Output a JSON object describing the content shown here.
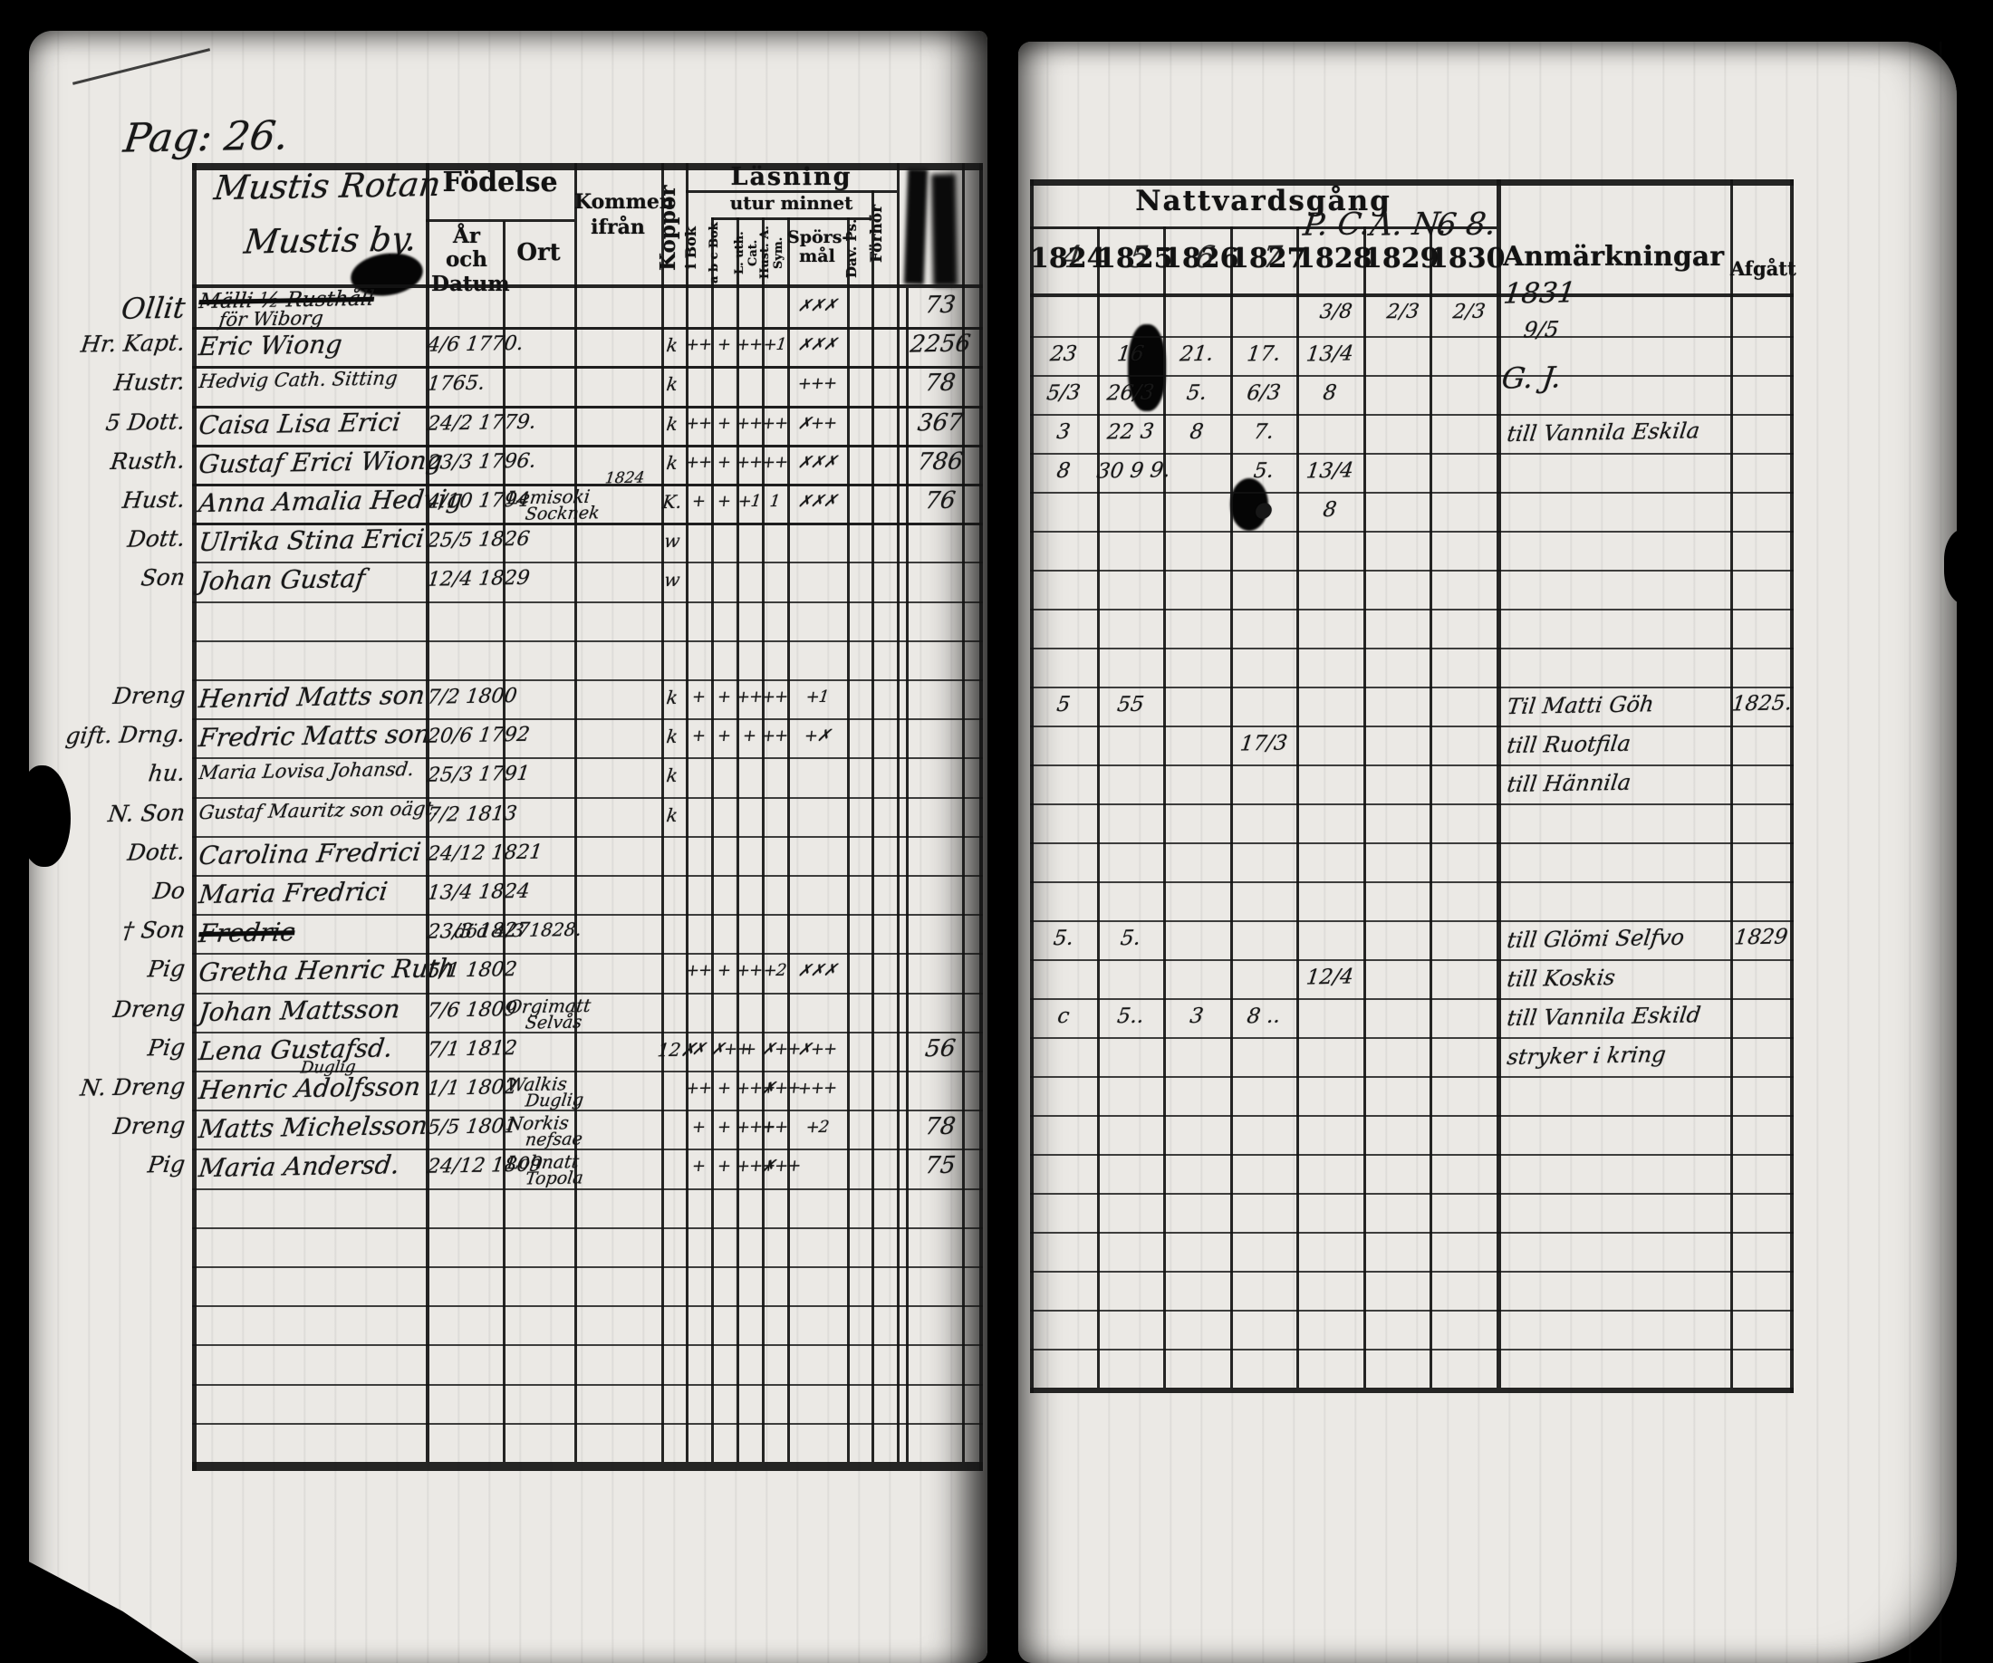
{
  "palette": {
    "background": "#000000",
    "paper": "#ebe9e5",
    "ink": "#1c1c1c"
  },
  "left_page": {
    "reg_label": "Pag: 26.",
    "title_line1": "Mustis Rotan",
    "title_line2": "Mustis by.",
    "headers": {
      "fodelse": "Födelse",
      "ar_och_datum": "År och Datum",
      "ort": "Ort",
      "kommen_ifran": "Kommen ifrån",
      "koppor": "Koppor",
      "lasning": "Läsning",
      "utur_minnet": "utur minnet",
      "i_bok": "i Bok",
      "abc_bok": "a b c Bok",
      "cat_uth": "L. uth. Cat.",
      "hust_sym": "Hust. A. Sym.",
      "sporsmal": "Spörs- mål",
      "dav_ps": "Dav. Ps.",
      "forhor": "Förhör"
    },
    "rows": [
      {
        "margin": "Ollit",
        "name": "Mälli ½ Rusthåll",
        "name2": "för Wiborg",
        "struck": true,
        "m": [
          "",
          "",
          "",
          "",
          "✗✗✗",
          ""
        ],
        "score": "73"
      },
      {
        "margin": "Hr. Kapt.",
        "name": "Eric Wiong",
        "date": "4/6 1770.",
        "koppor": "k",
        "m": [
          "++",
          "+",
          "++",
          "+1",
          "✗✗✗",
          ""
        ],
        "score": "2256"
      },
      {
        "margin": "Hustr.",
        "name": "Hedvig Cath. Sitting",
        "date": "1765.",
        "koppor": "k",
        "m": [
          "",
          "",
          "",
          "",
          "+++",
          ""
        ],
        "score": "78"
      },
      {
        "margin": "5 Dott.",
        "name": "Caisa Lisa Erici",
        "date": "24/2 1779.",
        "koppor": "k",
        "m": [
          "++",
          "+",
          "++",
          "++",
          "✗++",
          ""
        ],
        "score": "367"
      },
      {
        "margin": "Rusth.",
        "name": "Gustaf Erici Wiong",
        "date": "23/3 1796.",
        "koppor": "k",
        "m": [
          "++",
          "+",
          "++",
          "++",
          "✗✗✗",
          ""
        ],
        "score": "786"
      },
      {
        "margin": "Hust.",
        "name": "Anna Amalia Hedvig",
        "date": "4/10 1794",
        "kommen": "Lemisoki",
        "kommen2": "Socknek",
        "kommen_note": "1824",
        "koppor": "K.",
        "m": [
          "+",
          "+",
          "+1",
          "1",
          "✗✗✗",
          ""
        ],
        "score": "76"
      },
      {
        "margin": "Dott.",
        "name": "Ulrika Stina Erici",
        "date": "25/5 1826",
        "koppor": "w",
        "m": [
          "",
          "",
          "",
          "",
          "",
          ""
        ]
      },
      {
        "margin": "Son",
        "name": "Johan Gustaf",
        "date": "12/4 1829",
        "koppor": "w",
        "m": [
          "",
          "",
          "",
          "",
          "",
          ""
        ]
      },
      {},
      {},
      {
        "margin": "Dreng",
        "name": "Henrid Matts son",
        "date": "7/2 1800",
        "koppor": "k",
        "m": [
          "+",
          "+",
          "++",
          "++",
          "+1",
          ""
        ]
      },
      {
        "margin": "gift. Drng.",
        "name": "Fredric Matts son",
        "date": "20/6 1792",
        "koppor": "k",
        "m": [
          "+",
          "+",
          "+",
          "++",
          "+✗",
          ""
        ]
      },
      {
        "margin": "hu.",
        "name": "Maria Lovisa Johansd.",
        "date": "25/3 1791",
        "koppor": "k",
        "m": [
          "",
          "",
          "",
          "",
          "",
          ""
        ]
      },
      {
        "margin": "N. Son",
        "name": "Gustaf Mauritz son oägt.",
        "date": "7/2 1813",
        "koppor": "k",
        "m": [
          "",
          "",
          "",
          "",
          "",
          ""
        ]
      },
      {
        "margin": "Dott.",
        "name": "Carolina Fredrici",
        "date": "24/12 1821",
        "m": [
          "",
          "",
          "",
          "",
          "",
          ""
        ]
      },
      {
        "margin": "Do",
        "name": "Maria Fredrici",
        "date": "13/4 1824",
        "m": [
          "",
          "",
          "",
          "",
          "",
          ""
        ]
      },
      {
        "margin": "† Son",
        "name": "Fredric",
        "date": "23/3 1827",
        "note": "död 4/3 1828.",
        "struck": true,
        "m": [
          "",
          "",
          "",
          "",
          "",
          ""
        ]
      },
      {
        "margin": "Pig",
        "name": "Gretha Henric Ruth",
        "date": "5/1 1802",
        "m": [
          "++",
          "+",
          "++",
          "+2",
          "✗✗✗",
          ""
        ]
      },
      {
        "margin": "Dreng",
        "name": "Johan Mattsson",
        "date": "7/6 1809",
        "kommen": "Orgimatt",
        "kommen2": "Selvås",
        "m": [
          "",
          "",
          "",
          "",
          "",
          ""
        ]
      },
      {
        "margin": "Pig",
        "name": "Lena Gustafsd.",
        "date": "7/1 1812",
        "koppor": "12✗",
        "m": [
          "✗",
          "✗++",
          "+",
          "✗++",
          "✗++",
          ""
        ],
        "score": "56"
      },
      {
        "margin": "N. Dreng",
        "name": "Henric Adolfsson",
        "name_note": "Duglig",
        "date": "1/1 1802",
        "kommen": "Walkis",
        "kommen2": "Duglig",
        "m": [
          "++",
          "+",
          "+++",
          "✗++",
          "+++",
          ""
        ]
      },
      {
        "margin": "Dreng",
        "name": "Matts Michelsson",
        "date": "5/5 1801",
        "kommen": "Norkis",
        "kommen2": "nefsae",
        "m": [
          "+",
          "+",
          "+++",
          "++",
          "+2",
          ""
        ],
        "score": "78"
      },
      {
        "margin": "Pig",
        "name": "Maria Andersd.",
        "date": "24/12 1809",
        "kommen": "Lohnatt",
        "kommen2": "Topola",
        "m": [
          "+",
          "+",
          "+++",
          "✗++",
          "",
          ""
        ],
        "score": "75"
      },
      {},
      {},
      {},
      {},
      {},
      {},
      {}
    ]
  },
  "right_page": {
    "headers": {
      "nattvardsgang": "Nattvardsgång",
      "anmarkningar": "Anmärkningar",
      "afgatt": "Afgått"
    },
    "years": [
      {
        "label": "1824",
        "overlay": "4"
      },
      {
        "label": "1825",
        "overlay": "5"
      },
      {
        "label": "1826",
        "overlay": "6"
      },
      {
        "label": "1827",
        "overlay": "7"
      },
      {
        "label": "1828",
        "scribble": "P. C.",
        "note": "3/8"
      },
      {
        "label": "1829",
        "scribble": "A. N.",
        "note": "2/3"
      },
      {
        "label": "1830",
        "scribble": "6 8.",
        "note": "2/3"
      }
    ],
    "extra_year": "1831",
    "extra_year_note": "9/5",
    "extra_year_sig": "G. J.",
    "rows": [
      {},
      {
        "y": [
          "23",
          "16",
          "21.",
          "17.",
          "13/4",
          "",
          ""
        ]
      },
      {
        "y": [
          "5/3",
          "26/3",
          "5.",
          "6/3",
          "8",
          "",
          ""
        ]
      },
      {
        "y": [
          "3",
          "22 3",
          "8",
          "7.",
          "",
          "",
          ""
        ],
        "anm": "till Vannila Eskila"
      },
      {
        "y": [
          "8",
          "30 9 9.",
          "",
          "5.",
          "13/4",
          "",
          ""
        ]
      },
      {
        "y": [
          "",
          "",
          "",
          "●",
          "8",
          "",
          ""
        ]
      },
      {},
      {},
      {},
      {},
      {
        "y": [
          "5",
          "55",
          "",
          "",
          "",
          "",
          ""
        ],
        "anm": "Til Matti Göh",
        "afgatt": "1825."
      },
      {
        "y": [
          "",
          "",
          "",
          "17/3",
          "",
          "",
          ""
        ],
        "anm": "till Ruotfila"
      },
      {
        "anm": "till Hännila"
      },
      {},
      {},
      {},
      {
        "y": [
          "5.",
          "5.",
          "",
          "",
          "",
          "",
          ""
        ],
        "anm": "till Glömi Selfvo",
        "afgatt": "1829"
      },
      {
        "y": [
          "",
          "",
          "",
          "",
          "12/4",
          "",
          ""
        ],
        "anm": "till Koskis"
      },
      {
        "y": [
          "c",
          "5..",
          "3",
          "8 ..",
          "",
          "",
          ""
        ],
        "anm": "till Vannila Eskild"
      },
      {
        "anm": "stryker i kring"
      },
      {},
      {},
      {},
      {},
      {},
      {},
      {},
      {}
    ]
  }
}
